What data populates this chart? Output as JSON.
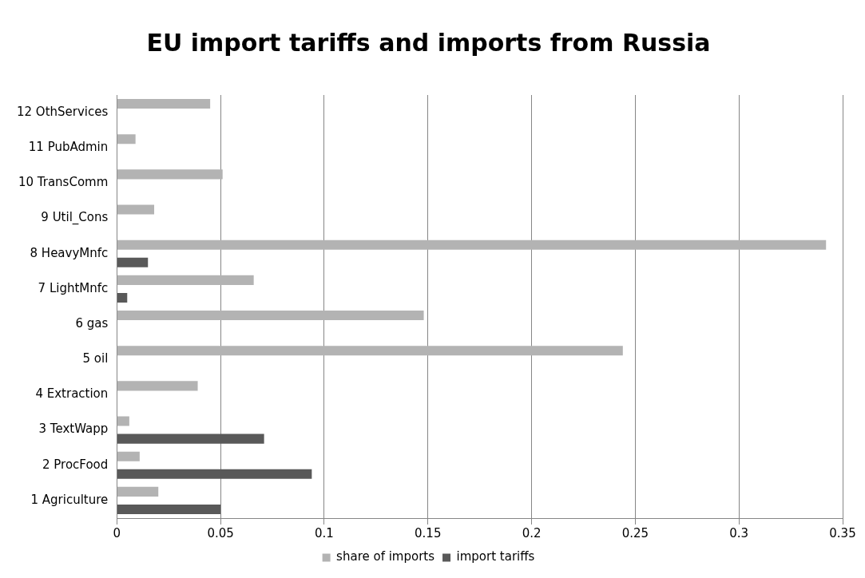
{
  "chart_data": {
    "type": "bar",
    "orientation": "horizontal",
    "title": "EU import tariffs and imports from Russia",
    "categories": [
      "12 OthServices",
      "11 PubAdmin",
      "10 TransComm",
      "9 Util_Cons",
      "8 HeavyMnfc",
      "7 LightMnfc",
      "6 gas",
      "5 oil",
      "4 Extraction",
      "3 TextWapp",
      "2 ProcFood",
      "1 Agriculture"
    ],
    "series": [
      {
        "name": "import tariffs",
        "color": "#595959",
        "values": [
          0,
          0,
          0,
          0,
          0.015,
          0.005,
          0,
          0,
          0,
          0.071,
          0.094,
          0.05
        ]
      },
      {
        "name": "share of imports",
        "color": "#b3b3b3",
        "values": [
          0.045,
          0.009,
          0.051,
          0.018,
          0.342,
          0.066,
          0.148,
          0.244,
          0.039,
          0.006,
          0.011,
          0.02
        ]
      }
    ],
    "xlim": [
      0,
      0.35
    ],
    "xticks": [
      0,
      0.05,
      0.1,
      0.15,
      0.2,
      0.25,
      0.3,
      0.35
    ],
    "grid": "x",
    "legend": "bottom"
  }
}
